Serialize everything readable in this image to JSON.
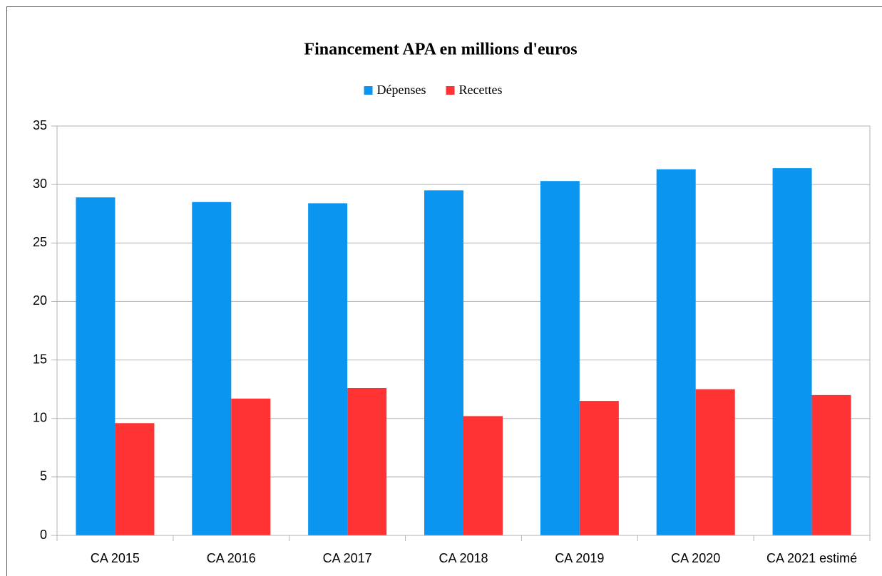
{
  "chart_data": {
    "type": "bar",
    "title": "Financement APA en millions d'euros",
    "categories": [
      "CA 2015",
      "CA 2016",
      "CA 2017",
      "CA 2018",
      "CA 2019",
      "CA 2020",
      "CA 2021 estimé"
    ],
    "series": [
      {
        "name": "Dépenses",
        "color": "#0a96f0",
        "values": [
          28.9,
          28.5,
          28.4,
          29.5,
          30.3,
          31.3,
          31.4
        ]
      },
      {
        "name": "Recettes",
        "color": "#ff3333",
        "values": [
          9.6,
          11.7,
          12.6,
          10.2,
          11.5,
          12.5,
          12.0
        ]
      }
    ],
    "ylim": [
      0,
      35
    ],
    "yticks": [
      0,
      5,
      10,
      15,
      20,
      25,
      30,
      35
    ],
    "grid": true,
    "legend": "top"
  }
}
